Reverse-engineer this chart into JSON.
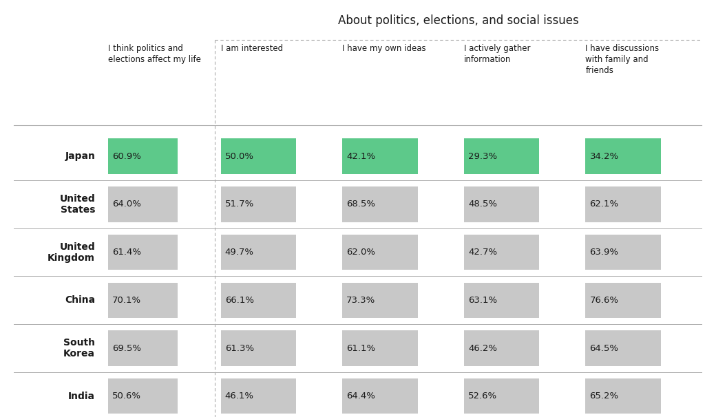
{
  "title": "About politics, elections, and social issues",
  "columns": [
    "I think politics and\nelections affect my life",
    "I am interested",
    "I have my own ideas",
    "I actively gather\ninformation",
    "I have discussions\nwith family and\nfriends"
  ],
  "rows": [
    "Japan",
    "United\nStates",
    "United\nKingdom",
    "China",
    "South\nKorea",
    "India"
  ],
  "values": [
    [
      60.9,
      50.0,
      42.1,
      29.3,
      34.2
    ],
    [
      64.0,
      51.7,
      68.5,
      48.5,
      62.1
    ],
    [
      61.4,
      49.7,
      62.0,
      42.7,
      63.9
    ],
    [
      70.1,
      66.1,
      73.3,
      63.1,
      76.6
    ],
    [
      69.5,
      61.3,
      61.1,
      46.2,
      64.5
    ],
    [
      50.6,
      46.1,
      64.4,
      52.6,
      65.2
    ]
  ],
  "japan_color": "#5DC98A",
  "other_color": "#C8C8C8",
  "bg_color": "#FFFFFF",
  "text_color": "#1A1A1A",
  "divider_color": "#AAAAAA"
}
